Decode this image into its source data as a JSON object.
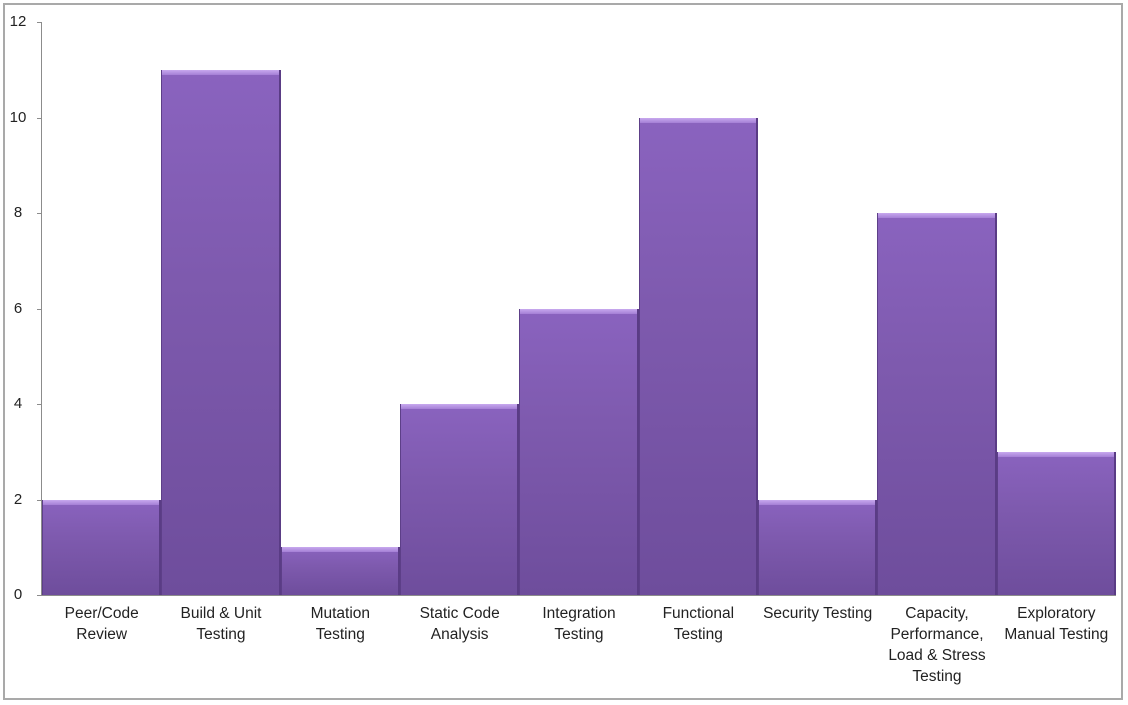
{
  "chart_data": {
    "type": "bar",
    "title": "",
    "xlabel": "",
    "ylabel": "",
    "categories": [
      "Peer/Code Review",
      "Build & Unit Testing",
      "Mutation Testing",
      "Static Code Analysis",
      "Integration Testing",
      "Functional Testing",
      "Security Testing",
      "Capacity, Performance, Load & Stress Testing",
      "Exploratory Manual Testing"
    ],
    "values": [
      2,
      11,
      1,
      4,
      6,
      10,
      2,
      8,
      3
    ],
    "ylim": [
      0,
      12
    ],
    "yticks": [
      0,
      2,
      4,
      6,
      8,
      10,
      12
    ],
    "grid": false,
    "legend": "none",
    "bar_color": "#7e5aae"
  },
  "axis": {
    "ytick_labels": [
      "0",
      "2",
      "4",
      "6",
      "8",
      "10",
      "12"
    ]
  },
  "bars": [
    {
      "label_lines": [
        "Peer/Code",
        "Review"
      ],
      "value": 2
    },
    {
      "label_lines": [
        "Build & Unit",
        "Testing"
      ],
      "value": 11
    },
    {
      "label_lines": [
        "Mutation",
        "Testing"
      ],
      "value": 1
    },
    {
      "label_lines": [
        "Static Code",
        "Analysis"
      ],
      "value": 4
    },
    {
      "label_lines": [
        "Integration",
        "Testing"
      ],
      "value": 6
    },
    {
      "label_lines": [
        "Functional",
        "Testing"
      ],
      "value": 10
    },
    {
      "label_lines": [
        "Security Testing"
      ],
      "value": 2
    },
    {
      "label_lines": [
        "Capacity,",
        "Performance,",
        "Load & Stress",
        "Testing"
      ],
      "value": 8
    },
    {
      "label_lines": [
        "Exploratory",
        "Manual Testing"
      ],
      "value": 3
    }
  ]
}
